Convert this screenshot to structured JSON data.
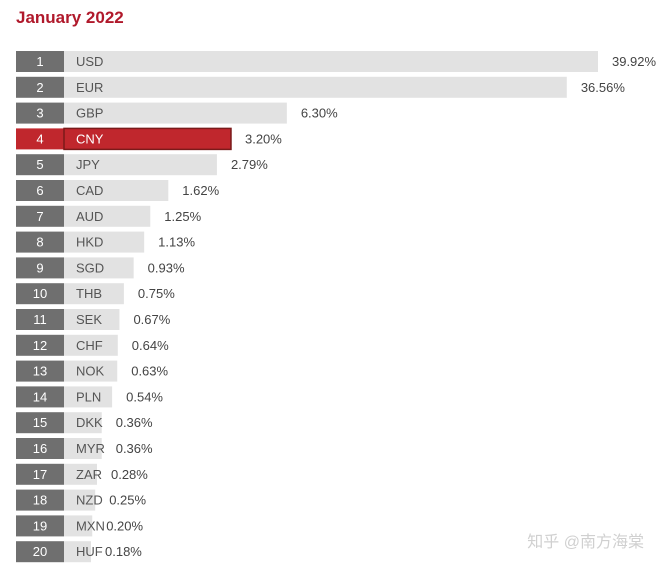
{
  "title": "January 2022",
  "watermark": "知乎 @南方海棠",
  "colors": {
    "title": "#b0192b",
    "rank_box": "#6f6f6f",
    "bar": "#e2e2e2",
    "highlight": "#c0272d",
    "highlight_border": "#7a1a1a",
    "label_text": "#555555",
    "value_text": "#444444"
  },
  "chart_data": {
    "type": "bar",
    "orientation": "horizontal",
    "title": "January 2022",
    "value_unit": "%",
    "highlighted_category": "CNY",
    "ranks": [
      1,
      2,
      3,
      4,
      5,
      6,
      7,
      8,
      9,
      10,
      11,
      12,
      13,
      14,
      15,
      16,
      17,
      18,
      19,
      20
    ],
    "categories": [
      "USD",
      "EUR",
      "GBP",
      "CNY",
      "JPY",
      "CAD",
      "AUD",
      "HKD",
      "SGD",
      "THB",
      "SEK",
      "CHF",
      "NOK",
      "PLN",
      "DKK",
      "MYR",
      "ZAR",
      "NZD",
      "MXN",
      "HUF"
    ],
    "values": [
      39.92,
      36.56,
      6.3,
      3.2,
      2.79,
      1.62,
      1.25,
      1.13,
      0.93,
      0.75,
      0.67,
      0.64,
      0.63,
      0.54,
      0.36,
      0.36,
      0.28,
      0.25,
      0.2,
      0.18
    ],
    "value_labels": [
      "39.92%",
      "36.56%",
      "6.30%",
      "3.20%",
      "2.79%",
      "1.62%",
      "1.25%",
      "1.13%",
      "0.93%",
      "0.75%",
      "0.67%",
      "0.64%",
      "0.63%",
      "0.54%",
      "0.36%",
      "0.36%",
      "0.28%",
      "0.25%",
      "0.20%",
      "0.18%"
    ],
    "grid": false,
    "legend": "none"
  }
}
